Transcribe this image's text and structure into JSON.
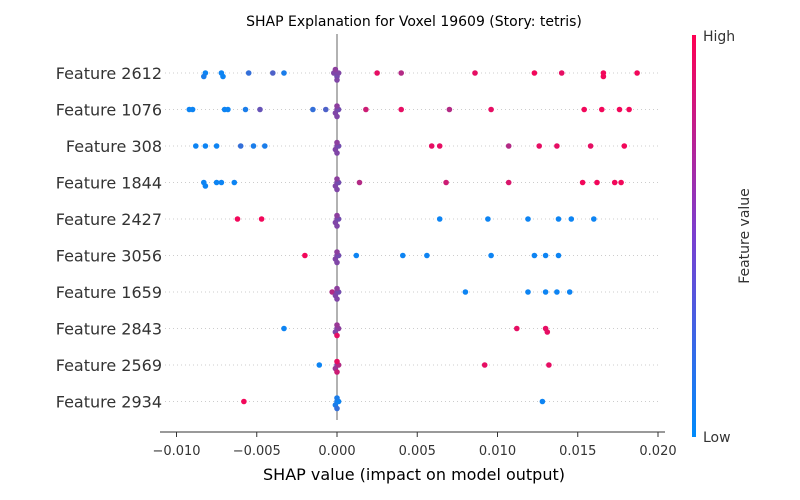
{
  "chart_data": {
    "type": "scatter",
    "title": "SHAP Explanation for Voxel 19609 (Story: tetris)",
    "xlabel": "SHAP value (impact on model output)",
    "ylabel": "",
    "xlim": [
      -0.0105,
      0.02
    ],
    "xticks": [
      -0.01,
      -0.005,
      0.0,
      0.005,
      0.01,
      0.015,
      0.02
    ],
    "xtick_labels": [
      "−0.010",
      "−0.005",
      "0.000",
      "0.005",
      "0.010",
      "0.015",
      "0.020"
    ],
    "grid": "dotted row guides",
    "colors": {
      "low": "#008bfb",
      "high": "#ff0052",
      "zero_line": "#999999"
    },
    "colorbar": {
      "title": "Feature value",
      "high_label": "High",
      "low_label": "Low"
    },
    "features": [
      {
        "name": "Feature 2612",
        "points": [
          [
            -0.0082,
            0.05
          ],
          [
            -0.0083,
            0.1
          ],
          [
            -0.0072,
            0.05
          ],
          [
            -0.0071,
            0.05
          ],
          [
            -0.0055,
            0.2
          ],
          [
            -0.004,
            0.3
          ],
          [
            -0.0033,
            0.1
          ],
          [
            -0.0002,
            0.5
          ],
          [
            -0.0001,
            0.5
          ],
          [
            0.0,
            0.45
          ],
          [
            0.0001,
            0.5
          ],
          [
            -0.0001,
            0.55
          ],
          [
            0.0,
            0.5
          ],
          [
            0.0025,
            0.9
          ],
          [
            0.004,
            0.7
          ],
          [
            0.0086,
            0.9
          ],
          [
            0.0123,
            0.95
          ],
          [
            0.014,
            0.9
          ],
          [
            0.0166,
            0.95
          ],
          [
            0.0166,
            0.95
          ],
          [
            0.0187,
            0.95
          ]
        ]
      },
      {
        "name": "Feature 1076",
        "points": [
          [
            -0.0092,
            0.05
          ],
          [
            -0.009,
            0.05
          ],
          [
            -0.007,
            0.05
          ],
          [
            -0.0068,
            0.05
          ],
          [
            -0.0057,
            0.1
          ],
          [
            -0.0048,
            0.4
          ],
          [
            -0.0015,
            0.2
          ],
          [
            -0.0007,
            0.3
          ],
          [
            0.0,
            0.5
          ],
          [
            -0.0001,
            0.5
          ],
          [
            0.0001,
            0.45
          ],
          [
            0.0,
            0.55
          ],
          [
            0.0,
            0.5
          ],
          [
            0.0018,
            0.8
          ],
          [
            0.004,
            0.9
          ],
          [
            0.007,
            0.7
          ],
          [
            0.0096,
            0.9
          ],
          [
            0.0154,
            0.95
          ],
          [
            0.0165,
            0.95
          ],
          [
            0.0176,
            0.95
          ],
          [
            0.0182,
            0.95
          ]
        ]
      },
      {
        "name": "Feature 308",
        "points": [
          [
            -0.0088,
            0.05
          ],
          [
            -0.0082,
            0.05
          ],
          [
            -0.0075,
            0.05
          ],
          [
            -0.006,
            0.2
          ],
          [
            -0.0052,
            0.1
          ],
          [
            -0.0045,
            0.1
          ],
          [
            0.0,
            0.5
          ],
          [
            -0.0001,
            0.5
          ],
          [
            0.0001,
            0.45
          ],
          [
            0.0,
            0.55
          ],
          [
            0.0,
            0.5
          ],
          [
            0.0059,
            0.9
          ],
          [
            0.0064,
            0.9
          ],
          [
            0.0107,
            0.7
          ],
          [
            0.0126,
            0.9
          ],
          [
            0.0137,
            0.9
          ],
          [
            0.0158,
            0.9
          ],
          [
            0.0179,
            0.95
          ]
        ]
      },
      {
        "name": "Feature 1844",
        "points": [
          [
            -0.0083,
            0.05
          ],
          [
            -0.0082,
            0.05
          ],
          [
            -0.0075,
            0.05
          ],
          [
            -0.0072,
            0.05
          ],
          [
            -0.0064,
            0.05
          ],
          [
            0.0,
            0.5
          ],
          [
            -0.0001,
            0.5
          ],
          [
            0.0001,
            0.45
          ],
          [
            0.0,
            0.55
          ],
          [
            0.0,
            0.5
          ],
          [
            0.0014,
            0.7
          ],
          [
            0.0068,
            0.8
          ],
          [
            0.0107,
            0.85
          ],
          [
            0.0153,
            0.95
          ],
          [
            0.0162,
            0.95
          ],
          [
            0.0173,
            0.95
          ],
          [
            0.0177,
            0.95
          ]
        ]
      },
      {
        "name": "Feature 2427",
        "points": [
          [
            -0.0062,
            0.95
          ],
          [
            -0.0047,
            0.95
          ],
          [
            0.0,
            0.5
          ],
          [
            -0.0001,
            0.5
          ],
          [
            0.0001,
            0.45
          ],
          [
            0.0,
            0.55
          ],
          [
            0.0,
            0.5
          ],
          [
            0.0064,
            0.05
          ],
          [
            0.0094,
            0.05
          ],
          [
            0.0119,
            0.05
          ],
          [
            0.0138,
            0.05
          ],
          [
            0.0146,
            0.05
          ],
          [
            0.016,
            0.05
          ]
        ]
      },
      {
        "name": "Feature 3056",
        "points": [
          [
            -0.002,
            0.95
          ],
          [
            0.0,
            0.5
          ],
          [
            -0.0001,
            0.5
          ],
          [
            0.0001,
            0.45
          ],
          [
            0.0,
            0.55
          ],
          [
            0.0,
            0.5
          ],
          [
            0.0012,
            0.05
          ],
          [
            0.0041,
            0.05
          ],
          [
            0.0056,
            0.05
          ],
          [
            0.0096,
            0.05
          ],
          [
            0.0123,
            0.05
          ],
          [
            0.013,
            0.05
          ],
          [
            0.0138,
            0.05
          ]
        ]
      },
      {
        "name": "Feature 1659",
        "points": [
          [
            -0.0003,
            0.7
          ],
          [
            0.0,
            0.5
          ],
          [
            -0.0001,
            0.5
          ],
          [
            0.0001,
            0.45
          ],
          [
            0.0,
            0.55
          ],
          [
            0.0,
            0.5
          ],
          [
            0.008,
            0.05
          ],
          [
            0.0119,
            0.05
          ],
          [
            0.013,
            0.05
          ],
          [
            0.0137,
            0.05
          ],
          [
            0.0145,
            0.05
          ]
        ]
      },
      {
        "name": "Feature 2843",
        "points": [
          [
            -0.0033,
            0.05
          ],
          [
            0.0,
            0.5
          ],
          [
            -0.0001,
            0.5
          ],
          [
            0.0001,
            0.55
          ],
          [
            0.0,
            0.6
          ],
          [
            0.0,
            0.9
          ],
          [
            0.0112,
            0.9
          ],
          [
            0.013,
            0.9
          ],
          [
            0.0131,
            0.9
          ]
        ]
      },
      {
        "name": "Feature 2569",
        "points": [
          [
            -0.0011,
            0.05
          ],
          [
            0.0,
            0.5
          ],
          [
            -0.0001,
            0.6
          ],
          [
            0.0001,
            0.7
          ],
          [
            0.0,
            0.9
          ],
          [
            0.0,
            0.8
          ],
          [
            0.0092,
            0.9
          ],
          [
            0.0132,
            0.9
          ]
        ]
      },
      {
        "name": "Feature 2934",
        "points": [
          [
            -0.0058,
            0.95
          ],
          [
            0.0,
            0.1
          ],
          [
            -0.0001,
            0.1
          ],
          [
            0.0001,
            0.05
          ],
          [
            0.0,
            0.1
          ],
          [
            0.0,
            0.2
          ],
          [
            0.0128,
            0.05
          ]
        ]
      }
    ]
  }
}
